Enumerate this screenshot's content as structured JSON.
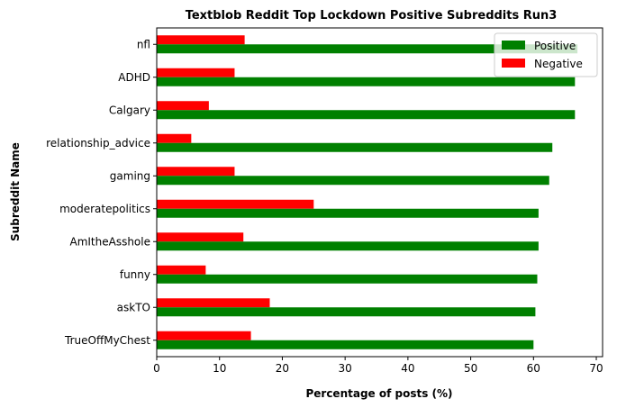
{
  "chart_data": {
    "type": "bar",
    "orientation": "horizontal",
    "title": "Textblob Reddit Top Lockdown Positive Subreddits Run3",
    "xlabel": "Percentage of posts (%)",
    "ylabel": "Subreddit Name",
    "xlim": [
      0,
      71
    ],
    "xticks": [
      0,
      10,
      20,
      30,
      40,
      50,
      60,
      70
    ],
    "grid": false,
    "legend_position": "top-right",
    "categories": [
      "nfl",
      "ADHD",
      "Calgary",
      "relationship_advice",
      "gaming",
      "moderatepolitics",
      "AmItheAsshole",
      "funny",
      "askTO",
      "TrueOffMyChest"
    ],
    "series": [
      {
        "name": "Positive",
        "color": "#008000",
        "values": [
          67.0,
          66.6,
          66.6,
          63.0,
          62.5,
          60.8,
          60.8,
          60.6,
          60.3,
          60.0
        ]
      },
      {
        "name": "Negative",
        "color": "#ff0000",
        "values": [
          14.0,
          12.4,
          8.3,
          5.5,
          12.4,
          25.0,
          13.8,
          7.8,
          18.0,
          15.0
        ]
      }
    ]
  }
}
